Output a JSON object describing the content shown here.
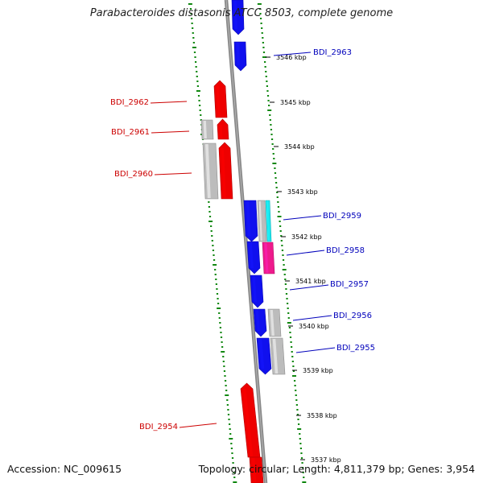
{
  "title": "Parabacteroides distasonis ATCC 8503, complete genome",
  "footer": {
    "accession": "Accession: NC_009615",
    "topology": "Topology: circular; Length: 4,811,379 bp; Genes: 3,954"
  },
  "colors": {
    "forward_cds": "#ee0000",
    "reverse_cds": "#1010ee",
    "pseudo": "#bcbcbc",
    "rna_cyan": "#19e8f0",
    "rna_magenta": "#ee1a8c",
    "backbone": "#888888",
    "gc_dots": "#118811",
    "forward_label": "#cc0000",
    "reverse_label": "#0000bb"
  },
  "ticks": [
    "3546 kbp",
    "3545 kbp",
    "3544 kbp",
    "3543 kbp",
    "3542 kbp",
    "3541 kbp",
    "3540 kbp",
    "3539 kbp",
    "3538 kbp",
    "3537 kbp"
  ],
  "genes": {
    "forward": [
      "BDI_2962",
      "BDI_2961",
      "BDI_2960",
      "BDI_2954"
    ],
    "reverse": [
      "BDI_2963",
      "BDI_2959",
      "BDI_2958",
      "BDI_2957",
      "BDI_2956",
      "BDI_2955"
    ]
  }
}
